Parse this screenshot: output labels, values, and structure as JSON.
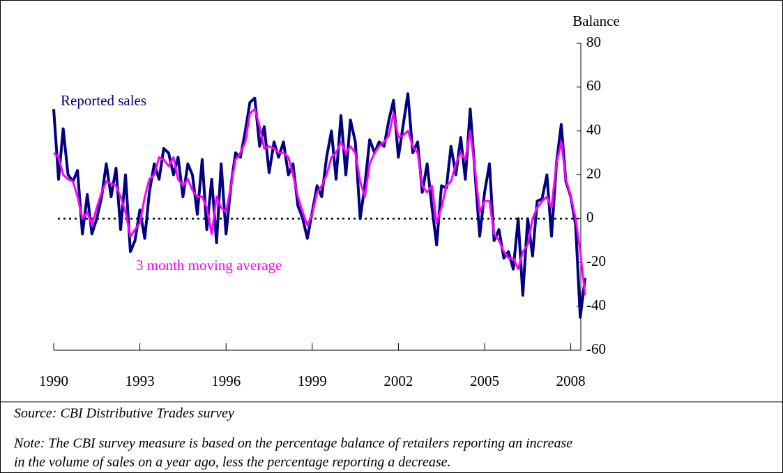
{
  "chart_data": {
    "type": "line",
    "y_label": "Balance",
    "x": [
      1990,
      1990.17,
      1990.33,
      1990.5,
      1990.67,
      1990.83,
      1991,
      1991.17,
      1991.33,
      1991.5,
      1991.67,
      1991.83,
      1992,
      1992.17,
      1992.33,
      1992.5,
      1992.67,
      1992.83,
      1993,
      1993.17,
      1993.33,
      1993.5,
      1993.67,
      1993.83,
      1994,
      1994.17,
      1994.33,
      1994.5,
      1994.67,
      1994.83,
      1995,
      1995.17,
      1995.33,
      1995.5,
      1995.67,
      1995.83,
      1996,
      1996.17,
      1996.33,
      1996.5,
      1996.67,
      1996.83,
      1997,
      1997.17,
      1997.33,
      1997.5,
      1997.67,
      1997.83,
      1998,
      1998.17,
      1998.33,
      1998.5,
      1998.67,
      1998.83,
      1999,
      1999.17,
      1999.33,
      1999.5,
      1999.67,
      1999.83,
      2000,
      2000.17,
      2000.33,
      2000.5,
      2000.67,
      2000.83,
      2001,
      2001.17,
      2001.33,
      2001.5,
      2001.67,
      2001.83,
      2002,
      2002.17,
      2002.33,
      2002.5,
      2002.67,
      2002.83,
      2003,
      2003.17,
      2003.33,
      2003.5,
      2003.67,
      2003.83,
      2004,
      2004.17,
      2004.33,
      2004.5,
      2004.67,
      2004.83,
      2005,
      2005.17,
      2005.33,
      2005.5,
      2005.67,
      2005.83,
      2006,
      2006.17,
      2006.33,
      2006.5,
      2006.67,
      2006.83,
      2007,
      2007.17,
      2007.33,
      2007.5,
      2007.67,
      2007.83,
      2008,
      2008.17,
      2008.33,
      2008.5
    ],
    "series": [
      {
        "name": "Reported sales",
        "color": "#000080",
        "values": [
          50,
          18,
          41,
          20,
          17,
          22,
          -7,
          11,
          -7,
          0,
          10,
          25,
          10,
          23,
          -5,
          20,
          -15,
          -10,
          4,
          -9,
          12,
          25,
          18,
          32,
          30,
          20,
          28,
          10,
          25,
          20,
          2,
          27,
          -5,
          18,
          -11,
          25,
          -7,
          15,
          30,
          28,
          40,
          53,
          55,
          33,
          42,
          21,
          35,
          28,
          35,
          20,
          25,
          6,
          0,
          -9,
          3,
          15,
          10,
          28,
          40,
          18,
          47,
          20,
          45,
          35,
          0,
          15,
          36,
          30,
          35,
          33,
          45,
          54,
          28,
          43,
          57,
          30,
          35,
          12,
          25,
          5,
          -12,
          15,
          14,
          33,
          20,
          37,
          18,
          50,
          20,
          -8,
          12,
          25,
          -10,
          -5,
          -18,
          -15,
          -23,
          0,
          -35,
          0,
          -17,
          8,
          9,
          20,
          -8,
          25,
          43,
          17,
          10,
          -3,
          -45,
          -27
        ]
      },
      {
        "name": "3 month moving average",
        "color": "#ff00ff",
        "values": [
          30,
          28,
          20,
          18,
          17,
          10,
          0,
          3,
          -3,
          5,
          12,
          17,
          16,
          15,
          10,
          3,
          -8,
          -5,
          -2,
          10,
          18,
          20,
          28,
          27,
          24,
          28,
          18,
          15,
          18,
          13,
          10,
          10,
          5,
          -7,
          10,
          5,
          3,
          15,
          27,
          30,
          35,
          48,
          50,
          42,
          32,
          33,
          32,
          30,
          30,
          28,
          20,
          10,
          3,
          -3,
          2,
          12,
          15,
          20,
          28,
          30,
          35,
          30,
          33,
          30,
          17,
          10,
          25,
          30,
          33,
          35,
          38,
          48,
          37,
          38,
          40,
          33,
          30,
          15,
          12,
          15,
          -2,
          5,
          15,
          17,
          25,
          30,
          27,
          40,
          22,
          3,
          8,
          8,
          -7,
          -10,
          -15,
          -18,
          -18,
          -23,
          -15,
          -12,
          0,
          5,
          8,
          10,
          5,
          25,
          35,
          18,
          10,
          0,
          -15,
          -35
        ]
      }
    ],
    "xlim": [
      1990,
      2008.6
    ],
    "xticks": [
      1990,
      1993,
      1996,
      1999,
      2002,
      2005,
      2008
    ],
    "ylim": [
      -60,
      80
    ],
    "yticks": [
      -60,
      -40,
      -20,
      0,
      20,
      40,
      60,
      80
    ],
    "reference_line": 0
  },
  "source": "Source: CBI Distributive Trades survey",
  "note_lines": [
    "Note: The CBI survey measure is based on the percentage balance of retailers reporting an increase",
    "in the volume of sales on a year ago, less the percentage reporting a decrease."
  ]
}
